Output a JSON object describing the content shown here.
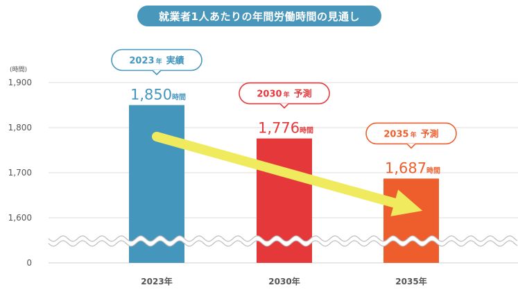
{
  "chart_data": {
    "type": "bar",
    "title": "就業者1人あたりの年間労働時間の見通し",
    "ylabel": "(時間)",
    "categories": [
      "2023年",
      "2030年",
      "2035年"
    ],
    "values": [
      1850,
      1776,
      1687
    ],
    "ylim": [
      1550,
      1900
    ],
    "y_ticks": [
      1900,
      1800,
      1700,
      1600
    ],
    "y_ticks_labels": [
      "1,900",
      "1,800",
      "1,700",
      "1,600"
    ],
    "y_zero_label": "0",
    "axis_break": true,
    "value_labels": [
      "1,850",
      "1,776",
      "1,687"
    ],
    "value_unit": "時間",
    "callouts": [
      {
        "year": "2023",
        "suffix": "年",
        "kind": "実績"
      },
      {
        "year": "2030",
        "suffix": "年",
        "kind": "予測"
      },
      {
        "year": "2035",
        "suffix": "年",
        "kind": "予測"
      }
    ],
    "bar_colors": [
      "#4596bd",
      "#e5383b",
      "#ee5e2d"
    ],
    "arrow_color": "#f0eb5e",
    "grid": true,
    "legend": "none"
  }
}
